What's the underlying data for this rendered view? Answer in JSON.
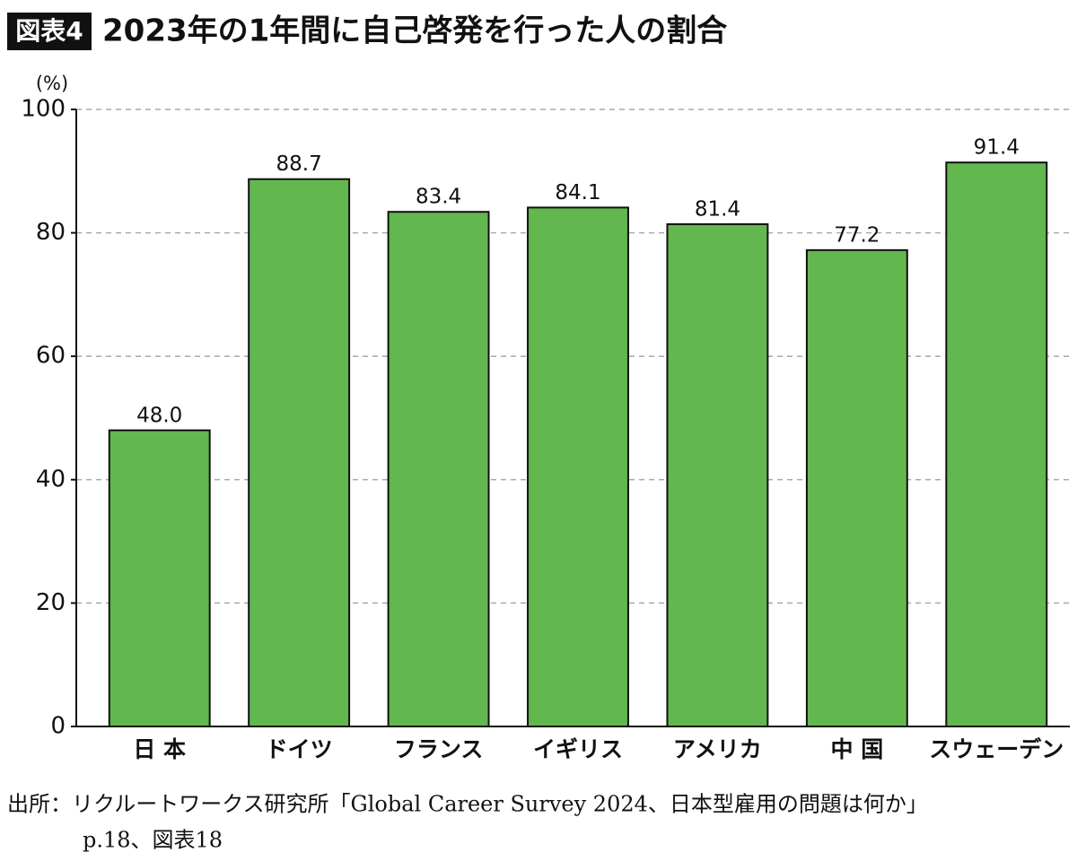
{
  "chart_data": {
    "type": "bar",
    "badge": "図表4",
    "title": "2023年の1年間に自己啓発を行った人の割合",
    "y_label": "(%)",
    "categories": [
      "日 本",
      "ドイツ",
      "フランス",
      "イギリス",
      "アメリカ",
      "中 国",
      "スウェーデン"
    ],
    "values": [
      48.0,
      88.7,
      83.4,
      84.1,
      81.4,
      77.2,
      91.4
    ],
    "value_labels": [
      "48.0",
      "88.7",
      "83.4",
      "84.1",
      "81.4",
      "77.2",
      "91.4"
    ],
    "color": "#62b74f",
    "ylim": [
      0,
      100
    ],
    "yticks": [
      0,
      20,
      40,
      60,
      80,
      100
    ],
    "grid": true,
    "source": [
      "出所：リクルートワークス研究所「Global Career Survey 2024、日本型雇用の問題は何か」",
      "p.18、図表18"
    ]
  }
}
